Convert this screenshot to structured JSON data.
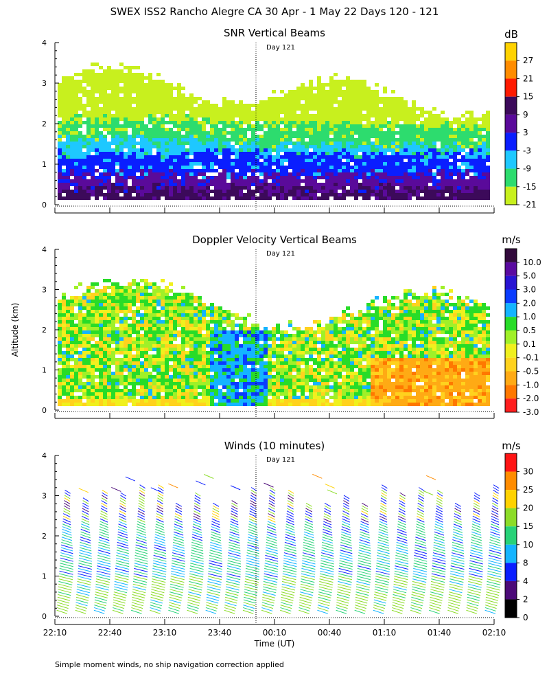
{
  "page": {
    "title": "SWEX ISS2 Rancho Alegre CA  30 Apr -  1 May 22 Days 120 - 121",
    "ylabel": "Altitude (km)",
    "xlabel": "Time (UT)",
    "footnote": "Simple moment winds, no ship navigation correction applied"
  },
  "chart_data": [
    {
      "type": "heatmap",
      "title": "SNR Vertical Beams",
      "colorbar_unit": "dB",
      "colorbar_levels": [
        "27",
        "21",
        "15",
        "9",
        "3",
        "-3",
        "-9",
        "-15",
        "-21"
      ],
      "colorbar_colors": [
        "#ffd200",
        "#ff8c00",
        "#ff1a00",
        "#3c0a5a",
        "#5a0a9a",
        "#0a1eff",
        "#1ec8ff",
        "#2ddc6e",
        "#c8f01e"
      ],
      "annotation": "Day 121",
      "ylim": [
        0,
        4
      ],
      "yticks": [
        "0",
        "1",
        "2",
        "3",
        "4"
      ],
      "xlim_hours": [
        22.1667,
        26.1667
      ],
      "day_boundary_hour": 24.0,
      "layers": [
        {
          "top_km": 0.45,
          "value": "9"
        },
        {
          "top_km": 0.8,
          "value": "3"
        },
        {
          "top_km": 1.3,
          "value": "-3"
        },
        {
          "top_km": 1.7,
          "value": "-9"
        },
        {
          "top_km": 2.2,
          "value": "-15"
        },
        {
          "top_km": 3.1,
          "value": "-21"
        }
      ]
    },
    {
      "type": "heatmap",
      "title": "Doppler Velocity Vertical Beams",
      "colorbar_unit": "m/s",
      "colorbar_levels": [
        "10.0",
        "5.0",
        "3.0",
        "2.0",
        "1.0",
        "0.5",
        "0.1",
        "-0.1",
        "-0.5",
        "-1.0",
        "-2.0",
        "-3.0"
      ],
      "colorbar_colors": [
        "#320a3c",
        "#5a0aa0",
        "#2814d2",
        "#0a3cff",
        "#14b4ff",
        "#28dc28",
        "#a0f028",
        "#f0f01e",
        "#ffd21e",
        "#ffaa14",
        "#ff7800",
        "#ff1e1e"
      ],
      "annotation": "Day 121",
      "ylim": [
        0,
        4
      ],
      "yticks": [
        "0",
        "1",
        "2",
        "3",
        "4"
      ],
      "dominant_values": [
        "0.5",
        "0.1",
        "-0.1",
        "-0.5",
        "-1.0"
      ]
    },
    {
      "type": "scatter",
      "subtype": "wind-barbs",
      "title": "Winds (10 minutes)",
      "colorbar_unit": "m/s",
      "colorbar_levels": [
        "30",
        "25",
        "20",
        "15",
        "10",
        "8",
        "4",
        "2",
        "0"
      ],
      "colorbar_colors": [
        "#ff1414",
        "#ff8c00",
        "#ffd200",
        "#8cdc28",
        "#28d278",
        "#14b4ff",
        "#0a1eff",
        "#4b0a78",
        "#000000"
      ],
      "annotation": "Day 121",
      "ylim": [
        0,
        4
      ],
      "yticks": [
        "0",
        "1",
        "2",
        "3",
        "4"
      ],
      "x_tick_labels": [
        "22:10",
        "22:40",
        "23:10",
        "23:40",
        "00:10",
        "00:40",
        "01:10",
        "01:40",
        "02:10"
      ],
      "profile_count": 24,
      "profile_interval_minutes": 10
    }
  ]
}
